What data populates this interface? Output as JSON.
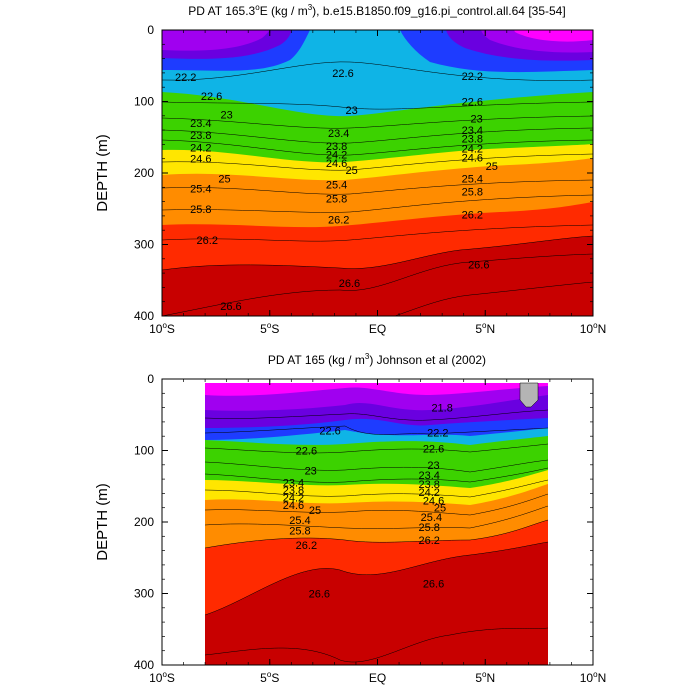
{
  "figure": {
    "panels": [
      {
        "title_left": "PD AT 165.3",
        "title_sup1": "o",
        "title_mid": "E (kg / m",
        "title_sup2": "3",
        "title_right": "), b.e15.B1850.f09_g16.pi_control.all.64 [35-54]"
      },
      {
        "title_left": "PD AT 165 (kg / m",
        "title_sup1": "3",
        "title_right": ") Johnson et al (2002)"
      }
    ],
    "colors": {
      "magenta": "#ff00ff",
      "violet": "#a000f0",
      "purple": "#6a00e0",
      "blue": "#1e3cff",
      "cyan": "#0fb4e6",
      "green": "#3cd200",
      "yellow": "#ffe600",
      "orange": "#ff8c00",
      "red": "#ff2a00",
      "darkred": "#c80000",
      "missing": "#b4b4b4"
    }
  },
  "chart_data": [
    {
      "type": "heatmap",
      "title": "PD AT 165.3°E (kg / m³), b.e15.B1850.f09_g16.pi_control.all.64 [35-54]",
      "ylabel": "DEPTH (m)",
      "xlabel": "",
      "x_range": [
        -10,
        10
      ],
      "y_range": [
        0,
        400
      ],
      "y_inverted": true,
      "y_ticks": [
        {
          "value": 0,
          "label": "0"
        },
        {
          "value": 100,
          "label": "100"
        },
        {
          "value": 200,
          "label": "200"
        },
        {
          "value": 300,
          "label": "300"
        },
        {
          "value": 400,
          "label": "400"
        }
      ],
      "x_ticks": [
        {
          "value": -10,
          "label": "10",
          "sup": "o",
          "suffix": "S"
        },
        {
          "value": -5,
          "label": "5",
          "sup": "o",
          "suffix": "S"
        },
        {
          "value": 0,
          "label": "EQ",
          "sup": "",
          "suffix": ""
        },
        {
          "value": 5,
          "label": "5",
          "sup": "o",
          "suffix": "N"
        },
        {
          "value": 10,
          "label": "10",
          "sup": "o",
          "suffix": "N"
        }
      ],
      "data_x_range": [
        -10,
        10
      ],
      "contour_labels": [
        {
          "text": "22.2",
          "x": -8.9,
          "y": 66
        },
        {
          "text": "22.6",
          "x": -7.7,
          "y": 92
        },
        {
          "text": "23",
          "x": -7.0,
          "y": 118
        },
        {
          "text": "23.4",
          "x": -8.2,
          "y": 130
        },
        {
          "text": "23.8",
          "x": -8.2,
          "y": 147
        },
        {
          "text": "24.2",
          "x": -8.2,
          "y": 164
        },
        {
          "text": "24.6",
          "x": -8.2,
          "y": 180
        },
        {
          "text": "25",
          "x": -7.1,
          "y": 208
        },
        {
          "text": "25.4",
          "x": -8.2,
          "y": 222
        },
        {
          "text": "25.8",
          "x": -8.2,
          "y": 250
        },
        {
          "text": "26.2",
          "x": -7.9,
          "y": 294
        },
        {
          "text": "26.6",
          "x": -6.8,
          "y": 386
        },
        {
          "text": "22.6",
          "x": -1.6,
          "y": 60
        },
        {
          "text": "23",
          "x": -1.2,
          "y": 112
        },
        {
          "text": "23.4",
          "x": -1.8,
          "y": 144
        },
        {
          "text": "23.8",
          "x": -1.9,
          "y": 162
        },
        {
          "text": "24.2",
          "x": -1.9,
          "y": 174
        },
        {
          "text": "24.6",
          "x": -1.9,
          "y": 186
        },
        {
          "text": "25",
          "x": -1.2,
          "y": 196
        },
        {
          "text": "25.4",
          "x": -1.9,
          "y": 216
        },
        {
          "text": "25.8",
          "x": -1.9,
          "y": 236
        },
        {
          "text": "26.2",
          "x": -1.8,
          "y": 265
        },
        {
          "text": "26.6",
          "x": -1.3,
          "y": 354
        },
        {
          "text": "22.2",
          "x": 4.4,
          "y": 64
        },
        {
          "text": "22.6",
          "x": 4.4,
          "y": 100
        },
        {
          "text": "23",
          "x": 4.6,
          "y": 124
        },
        {
          "text": "23.4",
          "x": 4.4,
          "y": 140
        },
        {
          "text": "23.8",
          "x": 4.4,
          "y": 152
        },
        {
          "text": "24.2",
          "x": 4.4,
          "y": 166
        },
        {
          "text": "24.6",
          "x": 4.4,
          "y": 178
        },
        {
          "text": "25",
          "x": 5.3,
          "y": 190
        },
        {
          "text": "25.4",
          "x": 4.4,
          "y": 208
        },
        {
          "text": "25.8",
          "x": 4.4,
          "y": 226
        },
        {
          "text": "26.2",
          "x": 4.4,
          "y": 258
        },
        {
          "text": "26.6",
          "x": 4.7,
          "y": 328
        }
      ]
    },
    {
      "type": "heatmap",
      "title": "PD AT 165 (kg / m³) Johnson et al (2002)",
      "ylabel": "DEPTH (m)",
      "xlabel": "",
      "x_range": [
        -10,
        10
      ],
      "y_range": [
        0,
        400
      ],
      "y_inverted": true,
      "y_ticks": [
        {
          "value": 0,
          "label": "0"
        },
        {
          "value": 100,
          "label": "100"
        },
        {
          "value": 200,
          "label": "200"
        },
        {
          "value": 300,
          "label": "300"
        },
        {
          "value": 400,
          "label": "400"
        }
      ],
      "x_ticks": [
        {
          "value": -10,
          "label": "10",
          "sup": "o",
          "suffix": "S"
        },
        {
          "value": -5,
          "label": "5",
          "sup": "o",
          "suffix": "S"
        },
        {
          "value": 0,
          "label": "EQ",
          "sup": "",
          "suffix": ""
        },
        {
          "value": 5,
          "label": "5",
          "sup": "o",
          "suffix": "N"
        },
        {
          "value": 10,
          "label": "10",
          "sup": "o",
          "suffix": "N"
        }
      ],
      "data_x_range": [
        -8,
        8
      ],
      "contour_labels": [
        {
          "text": "21.8",
          "x": 3.0,
          "y": 40
        },
        {
          "text": "22.6",
          "x": -2.2,
          "y": 72
        },
        {
          "text": "22.2",
          "x": 2.8,
          "y": 75
        },
        {
          "text": "22.6",
          "x": -3.3,
          "y": 100
        },
        {
          "text": "22.6",
          "x": 2.6,
          "y": 97
        },
        {
          "text": "23",
          "x": -3.1,
          "y": 128
        },
        {
          "text": "23",
          "x": 2.6,
          "y": 120
        },
        {
          "text": "23.4",
          "x": -3.9,
          "y": 145
        },
        {
          "text": "23.4",
          "x": 2.4,
          "y": 134
        },
        {
          "text": "23.8",
          "x": -3.9,
          "y": 155
        },
        {
          "text": "23.8",
          "x": 2.4,
          "y": 147
        },
        {
          "text": "24.2",
          "x": -3.9,
          "y": 166
        },
        {
          "text": "24.2",
          "x": 2.4,
          "y": 158
        },
        {
          "text": "24.6",
          "x": -3.9,
          "y": 176
        },
        {
          "text": "24.6",
          "x": 2.6,
          "y": 170
        },
        {
          "text": "25",
          "x": -2.9,
          "y": 183
        },
        {
          "text": "25",
          "x": 2.9,
          "y": 180
        },
        {
          "text": "25.4",
          "x": -3.6,
          "y": 197
        },
        {
          "text": "25.4",
          "x": 2.5,
          "y": 193
        },
        {
          "text": "25.8",
          "x": -3.6,
          "y": 212
        },
        {
          "text": "25.8",
          "x": 2.4,
          "y": 207
        },
        {
          "text": "26.2",
          "x": -3.3,
          "y": 232
        },
        {
          "text": "26.2",
          "x": 2.4,
          "y": 225
        },
        {
          "text": "26.6",
          "x": -2.7,
          "y": 300
        },
        {
          "text": "26.6",
          "x": 2.6,
          "y": 286
        }
      ]
    }
  ]
}
